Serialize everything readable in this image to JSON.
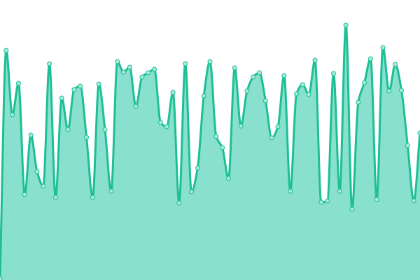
{
  "chart_data": {
    "type": "area",
    "title": "",
    "xlabel": "",
    "ylabel": "",
    "ylim": [
      0,
      400
    ],
    "grid": false,
    "smooth": true,
    "markers": true,
    "colors": {
      "line": "#1dbf95",
      "fill": "#8ae0cf",
      "marker_fill": "#a8eadc",
      "marker_stroke": "#1dbf95"
    },
    "values": [
      2,
      328,
      236,
      281,
      122,
      207,
      155,
      134,
      309,
      118,
      260,
      215,
      272,
      277,
      204,
      118,
      280,
      215,
      127,
      312,
      297,
      304,
      248,
      290,
      296,
      301,
      225,
      219,
      268,
      110,
      309,
      126,
      160,
      263,
      312,
      205,
      189,
      145,
      303,
      220,
      270,
      290,
      296,
      256,
      203,
      219,
      292,
      127,
      266,
      279,
      265,
      314,
      111,
      113,
      295,
      127,
      364,
      101,
      254,
      282,
      316,
      115,
      332,
      270,
      308,
      271,
      192,
      113,
      210
    ]
  }
}
